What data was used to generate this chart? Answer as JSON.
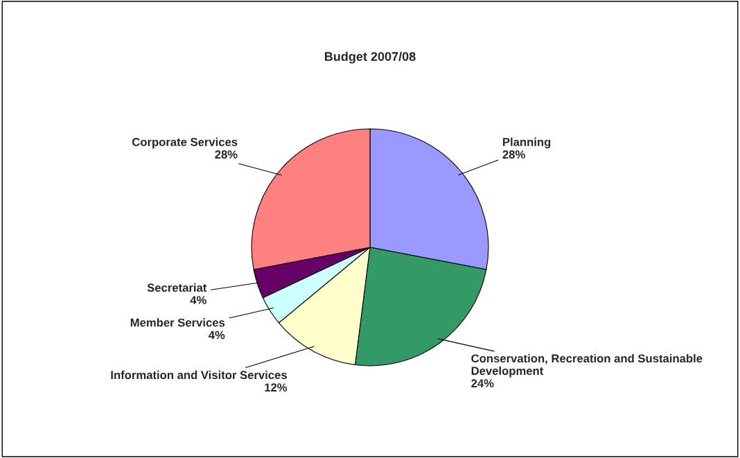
{
  "chart_data": {
    "type": "pie",
    "title": "Budget 2007/08",
    "categories": [
      "Planning",
      "Conservation, Recreation and Sustainable Development",
      "Information and Visitor Services",
      "Member Services",
      "Secretariat",
      "Corporate Services"
    ],
    "values": [
      28,
      24,
      12,
      4,
      4,
      28
    ],
    "colors": [
      "#9999ff",
      "#339966",
      "#ffffcc",
      "#ccffff",
      "#660066",
      "#ff8080"
    ],
    "value_labels": [
      "28%",
      "24%",
      "12%",
      "4%",
      "4%",
      "28%"
    ],
    "legend": false
  }
}
